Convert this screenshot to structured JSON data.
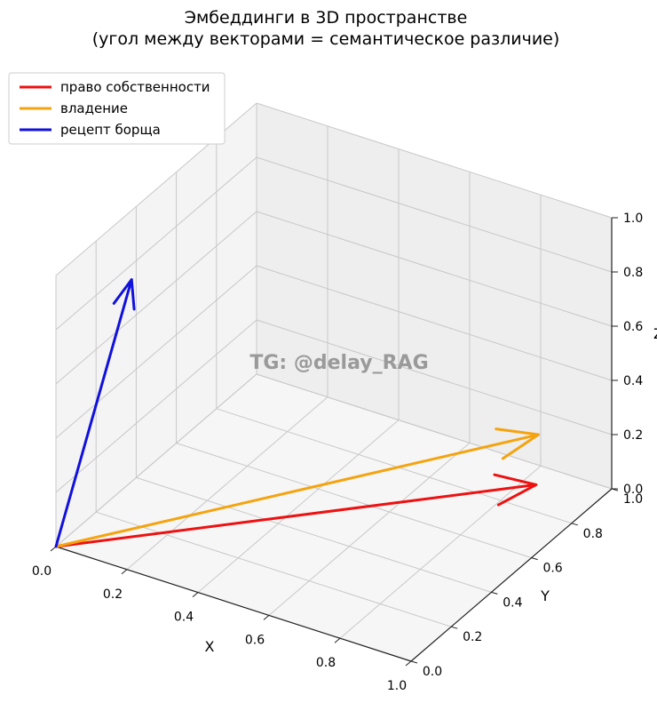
{
  "chart_data": {
    "type": "3d-vector",
    "title": "Эмбеддинги в 3D пространстве",
    "subtitle": "(угол между векторами = семантическое различие)",
    "xlabel": "X",
    "ylabel": "Y",
    "zlabel": "Z",
    "xlim": [
      0,
      1
    ],
    "ylim": [
      0,
      1
    ],
    "zlim": [
      0,
      1
    ],
    "xticks": [
      "0.0",
      "0.2",
      "0.4",
      "0.6",
      "0.8",
      "1.0"
    ],
    "yticks": [
      "0.0",
      "0.2",
      "0.4",
      "0.6",
      "0.8",
      "1.0"
    ],
    "zticks": [
      "0.0",
      "0.2",
      "0.4",
      "0.6",
      "0.8",
      "1.0"
    ],
    "grid": true,
    "legend_position": "top-left",
    "series": [
      {
        "name": "право собственности",
        "color": "#ee1111",
        "vector": [
          0.9,
          0.8,
          0.1
        ]
      },
      {
        "name": "владение",
        "color": "#f5a30f",
        "vector": [
          0.85,
          0.9,
          0.2
        ]
      },
      {
        "name": "рецепт борща",
        "color": "#1111dd",
        "vector": [
          0.1,
          0.2,
          0.9
        ]
      }
    ],
    "watermark": "TG: @delay_RAG"
  }
}
